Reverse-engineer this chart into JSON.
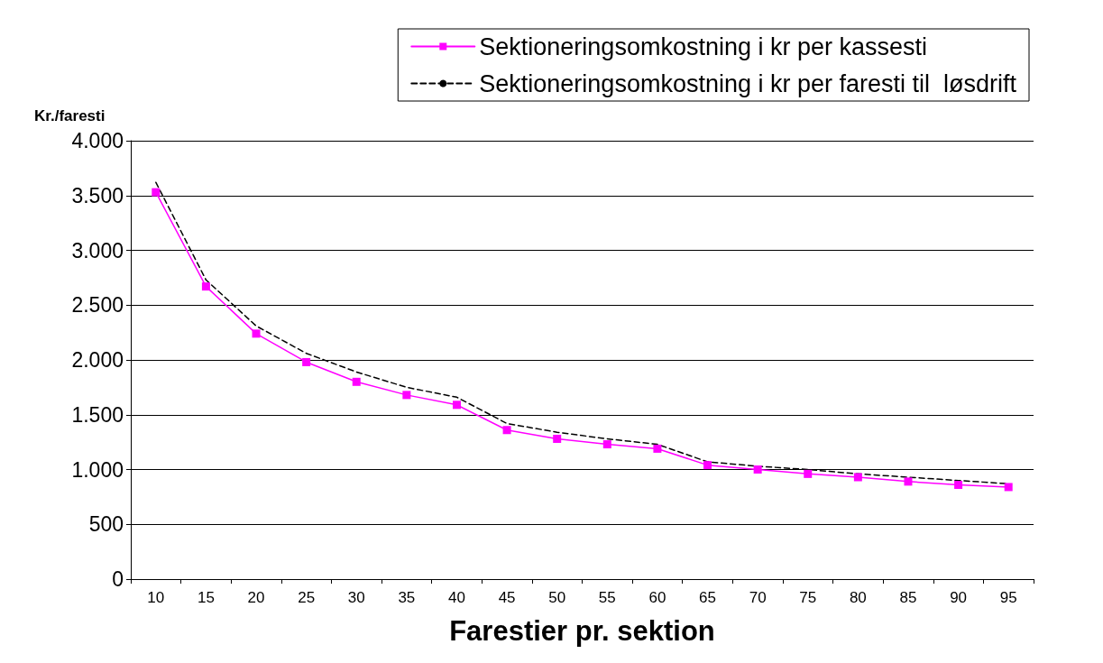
{
  "chart_data": {
    "type": "line",
    "xlabel": "Farestier pr. sektion",
    "ylabel": "Kr./faresti",
    "categories": [
      "10",
      "15",
      "20",
      "25",
      "30",
      "35",
      "40",
      "45",
      "50",
      "55",
      "60",
      "65",
      "70",
      "75",
      "80",
      "85",
      "90",
      "95"
    ],
    "series": [
      {
        "name": "Sektioneringsomkostning i kr per kassesti",
        "color": "#ff00ff",
        "marker": "square",
        "line_style": "solid",
        "values": [
          3530,
          2670,
          2240,
          1980,
          1800,
          1680,
          1590,
          1360,
          1280,
          1230,
          1190,
          1040,
          1000,
          960,
          930,
          890,
          860,
          840
        ]
      },
      {
        "name": "Sektioneringsomkostning i kr per faresti til  løsdrift",
        "color": "#000000",
        "marker": "none",
        "line_style": "dashed",
        "values": [
          3620,
          2730,
          2310,
          2060,
          1890,
          1750,
          1660,
          1420,
          1340,
          1280,
          1230,
          1070,
          1030,
          1000,
          960,
          930,
          900,
          870
        ]
      }
    ],
    "ylim": [
      0,
      4000
    ],
    "yticks": [
      {
        "value": 0,
        "label": "0"
      },
      {
        "value": 500,
        "label": "500"
      },
      {
        "value": 1000,
        "label": "1.000"
      },
      {
        "value": 1500,
        "label": "1.500"
      },
      {
        "value": 2000,
        "label": "2.000"
      },
      {
        "value": 2500,
        "label": "2.500"
      },
      {
        "value": 3000,
        "label": "3.000"
      },
      {
        "value": 3500,
        "label": "3.500"
      },
      {
        "value": 4000,
        "label": "4.000"
      }
    ],
    "grid": "y",
    "legend": "top right"
  }
}
